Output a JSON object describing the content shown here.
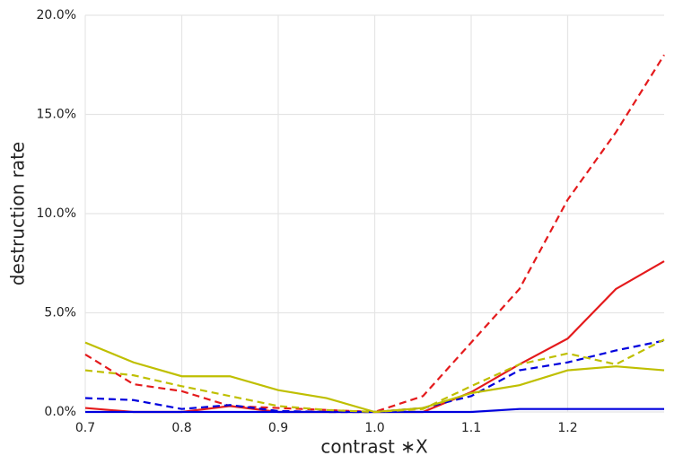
{
  "chart_data": {
    "type": "line",
    "xlabel": "contrast ∗X",
    "ylabel": "destruction rate",
    "x": [
      0.7,
      0.75,
      0.8,
      0.85,
      0.9,
      0.95,
      1.0,
      1.05,
      1.1,
      1.15,
      1.2,
      1.25,
      1.3
    ],
    "series": [
      {
        "color": "#e41a1c",
        "dash": "dashed",
        "values": [
          2.9,
          1.4,
          1.05,
          0.3,
          0.2,
          0.1,
          0,
          0.8,
          3.5,
          6.2,
          10.7,
          14.1,
          18.0
        ]
      },
      {
        "color": "#e41a1c",
        "dash": "solid",
        "values": [
          0.2,
          0,
          0,
          0.3,
          0,
          0,
          0,
          0,
          1.0,
          2.4,
          3.7,
          6.2,
          7.6
        ]
      },
      {
        "color": "#0000dd",
        "dash": "solid",
        "values": [
          0,
          0,
          0,
          0,
          0,
          0,
          0,
          0,
          0,
          0.15,
          0.15,
          0.15,
          0.15
        ]
      },
      {
        "color": "#0000dd",
        "dash": "dashed",
        "values": [
          0.7,
          0.6,
          0.15,
          0.35,
          0.05,
          0,
          0,
          0.2,
          0.8,
          2.1,
          2.5,
          3.1,
          3.6
        ]
      },
      {
        "color": "#bfbf00",
        "dash": "solid",
        "values": [
          3.5,
          2.5,
          1.8,
          1.8,
          1.1,
          0.7,
          0,
          0.2,
          0.95,
          1.35,
          2.1,
          2.3,
          2.1
        ]
      },
      {
        "color": "#bfbf00",
        "dash": "dashed",
        "values": [
          2.1,
          1.85,
          1.3,
          0.8,
          0.3,
          0.1,
          0,
          0.15,
          1.3,
          2.4,
          2.95,
          2.4,
          3.65
        ]
      }
    ],
    "xlim": [
      0.7,
      1.3
    ],
    "xticks": [
      0.7,
      0.8,
      0.9,
      {
        "value": 1,
        "label": "1.0"
      },
      1.1,
      1.2
    ],
    "ylim": [
      0,
      20
    ],
    "yticks": [
      {
        "value": 0,
        "label": "0.0%"
      },
      {
        "value": 5,
        "label": "5.0%"
      },
      {
        "value": 10,
        "label": "10.0%"
      },
      {
        "value": 15,
        "label": "15.0%"
      },
      {
        "value": 20,
        "label": "20.0%"
      }
    ],
    "grid": true
  }
}
